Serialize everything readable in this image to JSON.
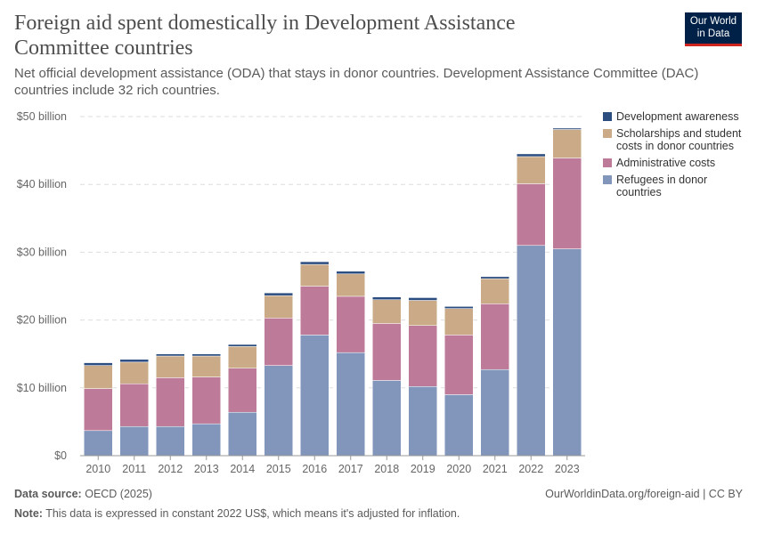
{
  "header": {
    "title": "Foreign aid spent domestically in Development Assistance Committee countries",
    "subtitle": "Net official development assistance (ODA) that stays in donor countries. Development Assistance Committee (DAC) countries include 32 rich countries.",
    "logo_line1": "Our World",
    "logo_line2": "in Data"
  },
  "footer": {
    "source_label": "Data source:",
    "source": "OECD (2025)",
    "url": "OurWorldinData.org/foreign-aid | CC BY",
    "note_label": "Note:",
    "note": "This data is expressed in constant 2022 US$, which means it's adjusted for inflation."
  },
  "chart_data": {
    "type": "bar",
    "stacked": true,
    "categories": [
      "2010",
      "2011",
      "2012",
      "2013",
      "2014",
      "2015",
      "2016",
      "2017",
      "2018",
      "2019",
      "2020",
      "2021",
      "2022",
      "2023"
    ],
    "ylim": [
      0,
      50
    ],
    "yticks": [
      0,
      10,
      20,
      30,
      40,
      50
    ],
    "ytick_labels": [
      "$0",
      "$10 billion",
      "$20 billion",
      "$30 billion",
      "$40 billion",
      "$50 billion"
    ],
    "grid": true,
    "legend": "right",
    "series": [
      {
        "name": "Refugees in donor countries",
        "color": "#8295bb",
        "values": [
          3.7,
          4.3,
          4.3,
          4.7,
          6.4,
          13.3,
          17.8,
          15.2,
          11.1,
          10.2,
          9.0,
          12.7,
          31.0,
          30.5
        ]
      },
      {
        "name": "Administrative costs",
        "color": "#be7b99",
        "values": [
          6.2,
          6.3,
          7.2,
          6.9,
          6.5,
          7.0,
          7.2,
          8.3,
          8.4,
          9.0,
          8.8,
          9.7,
          9.1,
          13.4
        ]
      },
      {
        "name": "Scholarships and student costs in donor countries",
        "color": "#cbab87",
        "values": [
          3.4,
          3.2,
          3.2,
          3.1,
          3.2,
          3.3,
          3.2,
          3.3,
          3.5,
          3.7,
          3.9,
          3.7,
          4.0,
          4.2
        ]
      },
      {
        "name": "Development awareness",
        "color": "#2c4d80",
        "values": [
          0.4,
          0.4,
          0.3,
          0.3,
          0.3,
          0.4,
          0.4,
          0.4,
          0.4,
          0.4,
          0.3,
          0.3,
          0.4,
          0.2
        ]
      }
    ]
  }
}
